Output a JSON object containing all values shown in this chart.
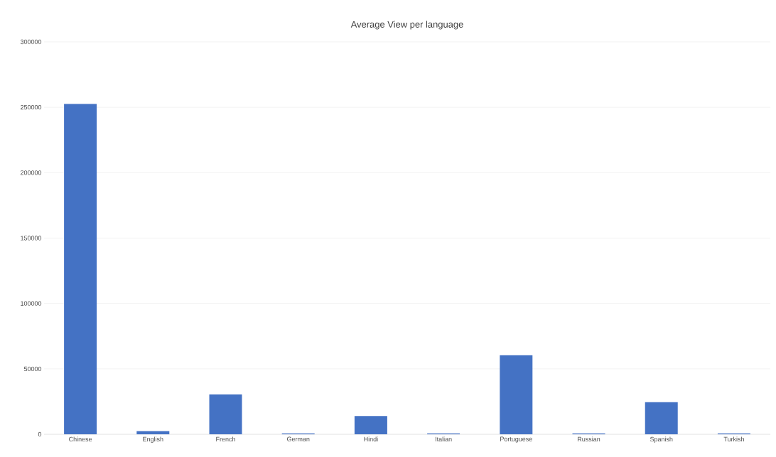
{
  "chart_data": {
    "type": "bar",
    "title": "Average View per language",
    "categories": [
      "Chinese",
      "English",
      "French",
      "German",
      "Hindi",
      "Italian",
      "Portuguese",
      "Russian",
      "Spanish",
      "Turkish"
    ],
    "values": [
      252500,
      2500,
      30500,
      700,
      14000,
      700,
      60500,
      700,
      24500,
      700
    ],
    "color": "#4472c4",
    "ylim": [
      0,
      300000
    ],
    "yticks": [
      0,
      50000,
      100000,
      150000,
      200000,
      250000,
      300000
    ],
    "grid": "y"
  }
}
